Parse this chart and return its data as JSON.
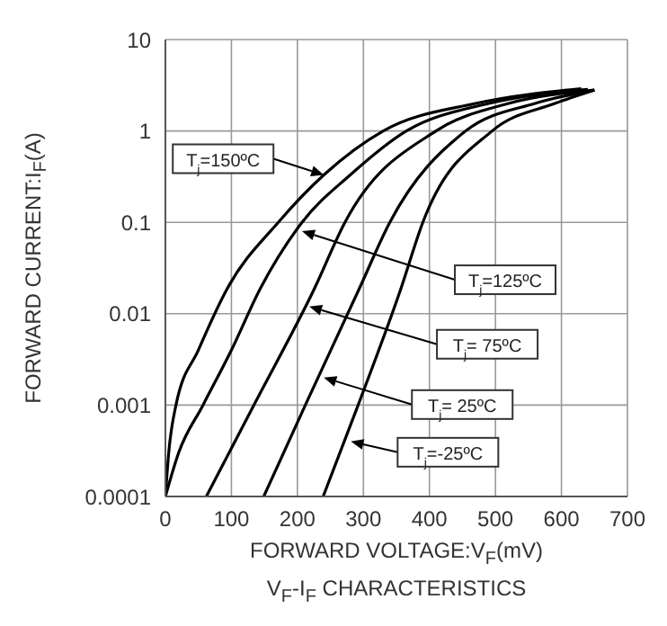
{
  "chart_data": {
    "type": "line",
    "title": "V$_{F}$-I$_{F}$ CHARACTERISTICS",
    "xlabel": "FORWARD VOLTAGE:V$_{F}$(mV)",
    "ylabel": "FORWARD CURRENT:I$_{F}$(A)",
    "series": [
      {
        "color": "#000000",
        "x": [
          0,
          5,
          16,
          50,
          94,
          171,
          240,
          330,
          470,
          630
        ],
        "values": [
          0.0001,
          0.0003,
          0.001,
          0.004,
          0.019,
          0.1,
          0.33,
          1,
          2,
          2.9
        ]
      },
      {
        "color": "#000000",
        "x": [
          0,
          20,
          57,
          100,
          144,
          207,
          280,
          365,
          490,
          640
        ],
        "values": [
          0.0001,
          0.0003,
          0.001,
          0.004,
          0.019,
          0.1,
          0.33,
          1,
          2,
          2.85
        ]
      },
      {
        "color": "#000000",
        "x": [
          62,
          134,
          226,
          272,
          410,
          520,
          650
        ],
        "values": [
          0.0001,
          0.001,
          0.019,
          0.1,
          1,
          2,
          2.8
        ]
      },
      {
        "color": "#000000",
        "x": [
          149,
          212,
          294,
          340,
          455,
          560,
          650
        ],
        "values": [
          0.0001,
          0.001,
          0.019,
          0.1,
          1,
          2,
          2.8
        ]
      },
      {
        "color": "#000000",
        "x": [
          239,
          292,
          357,
          390,
          495,
          590,
          650
        ],
        "values": [
          0.0001,
          0.001,
          0.019,
          0.1,
          1,
          2,
          2.8
        ]
      }
    ],
    "annotations": [
      {
        "text": "T$_{j}$=150ºC",
        "x": 240,
        "y": 0.33
      },
      {
        "text": "T$_{j}$=125ºC",
        "x": 207,
        "y": 0.08
      },
      {
        "text": "T$_{j}$= 75ºC",
        "x": 218,
        "y": 0.012
      },
      {
        "text": "T$_{j}$= 25ºC",
        "x": 240,
        "y": 0.002
      },
      {
        "text": "T$_{j}$=-25ºC",
        "x": 281,
        "y": 0.0004
      }
    ],
    "xlim": [
      0,
      700
    ],
    "xticks": [
      0,
      100,
      200,
      300,
      400,
      500,
      600,
      700
    ],
    "ylim": [
      0.0001,
      10
    ],
    "yticks": [
      0.0001,
      0.001,
      0.01,
      0.1,
      1,
      10
    ],
    "log": "y",
    "grid": true,
    "marker": "none",
    "line_style": "solid"
  }
}
